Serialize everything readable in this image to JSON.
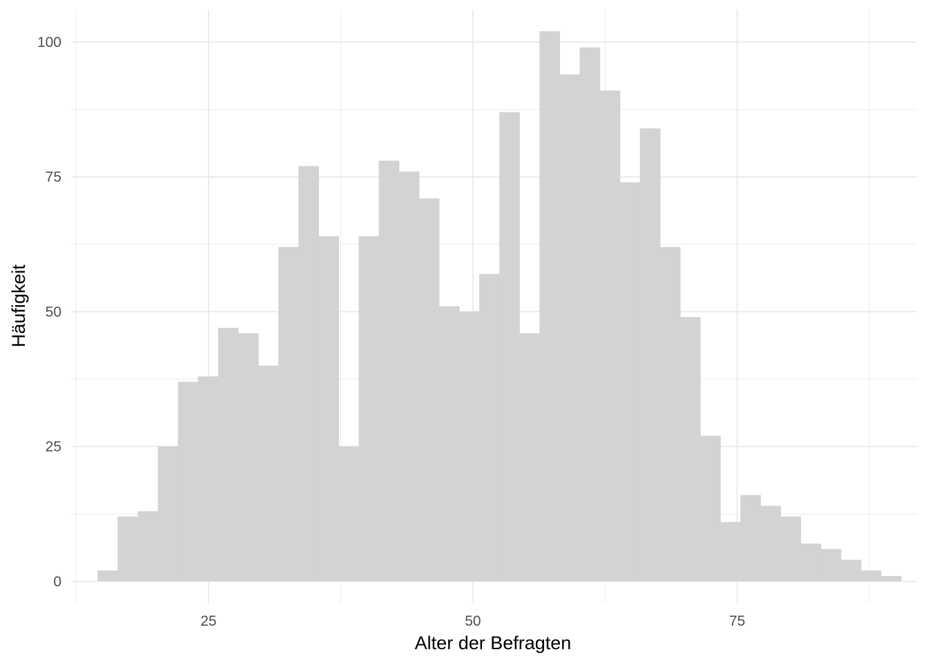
{
  "chart_data": {
    "type": "bar",
    "title": "",
    "xlabel": "Alter der Befragten",
    "ylabel": "Häufigkeit",
    "xlim": [
      12,
      92
    ],
    "ylim": [
      -4,
      106
    ],
    "x_ticks": [
      25,
      50,
      75
    ],
    "x_tick_labels": [
      "25",
      "50",
      "75"
    ],
    "x_minor_ticks": [
      12.5,
      37.5,
      62.5,
      87.5
    ],
    "y_ticks": [
      0,
      25,
      50,
      75,
      100
    ],
    "y_tick_labels": [
      "0",
      "25",
      "50",
      "75",
      "100"
    ],
    "y_minor_ticks": [
      12.5,
      37.5,
      62.5,
      87.5
    ],
    "grid": true,
    "bar_color": "#d3d3d3",
    "grid_color": "#ebebeb",
    "bin_width": 1.9,
    "bin_left_edges": [
      14.5,
      16.4,
      18.3,
      20.2,
      22.1,
      24.0,
      25.9,
      27.8,
      29.7,
      31.6,
      33.5,
      35.4,
      37.3,
      39.2,
      41.1,
      43.0,
      44.9,
      46.8,
      48.7,
      50.6,
      52.5,
      54.4,
      56.3,
      58.2,
      60.1,
      62.0,
      63.9,
      65.8,
      67.7,
      69.6,
      71.5,
      73.4,
      75.3,
      77.2,
      79.1,
      81.0,
      82.9,
      84.8,
      86.7,
      88.6
    ],
    "values": [
      2,
      12,
      13,
      25,
      37,
      38,
      47,
      46,
      40,
      62,
      77,
      64,
      25,
      64,
      78,
      76,
      71,
      51,
      50,
      57,
      87,
      46,
      102,
      94,
      99,
      91,
      74,
      84,
      62,
      49,
      27,
      11,
      16,
      14,
      12,
      7,
      6,
      4,
      2,
      1
    ]
  }
}
